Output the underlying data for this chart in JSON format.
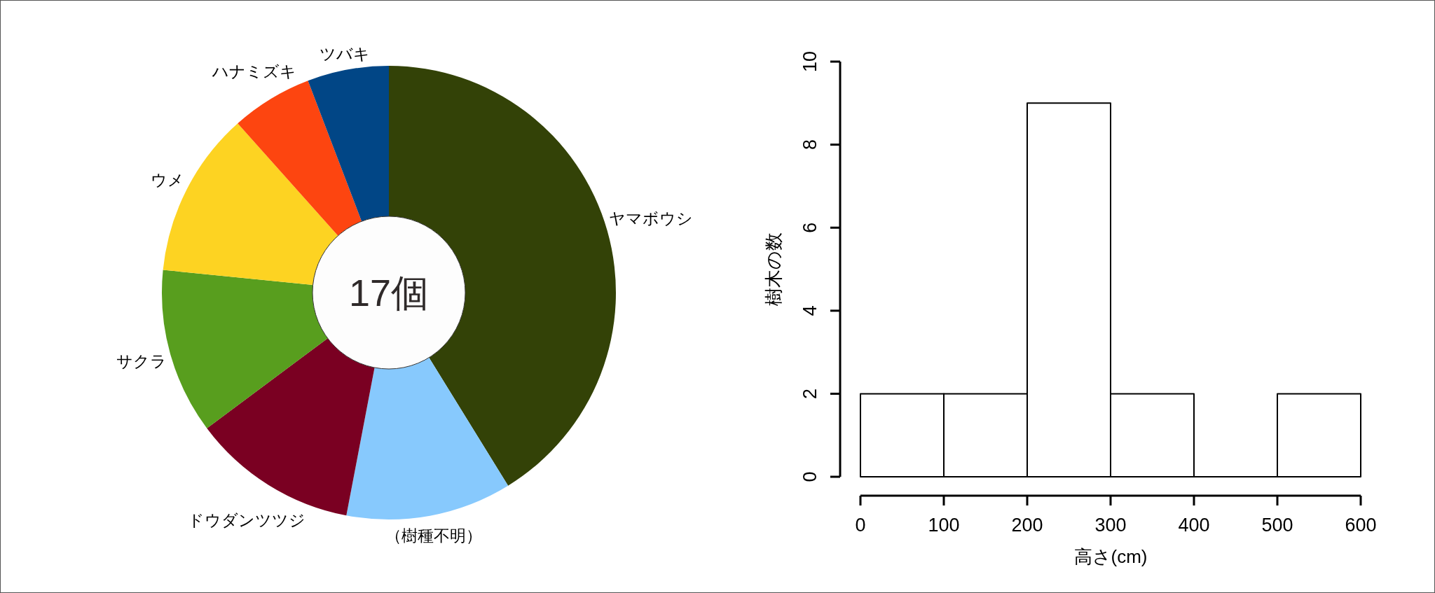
{
  "chart_data": [
    {
      "type": "donut",
      "categories": [
        "ヤマボウシ",
        "（樹種不明）",
        "ドウダンツツジ",
        "サクラ",
        "ウメ",
        "ハナミズキ",
        "ツバキ"
      ],
      "values": [
        41.2,
        11.8,
        11.8,
        11.8,
        11.8,
        5.8,
        5.8
      ],
      "colors": [
        "#334207",
        "#87c9fd",
        "#7a0022",
        "#589e1e",
        "#fdd322",
        "#fd4510",
        "#014686"
      ],
      "annotations": [
        "17個"
      ]
    },
    {
      "type": "histogram",
      "bins": [
        0,
        100,
        200,
        300,
        400,
        500,
        600
      ],
      "values": [
        2,
        2,
        9,
        2,
        0,
        2
      ],
      "xlabel": "高さ(cm)",
      "ylabel": "樹木の数",
      "xlim": [
        0,
        600
      ],
      "ylim": [
        0,
        10
      ],
      "xticks": [
        0,
        100,
        200,
        300,
        400,
        500,
        600
      ],
      "yticks": [
        0,
        2,
        4,
        6,
        8,
        10
      ]
    }
  ]
}
